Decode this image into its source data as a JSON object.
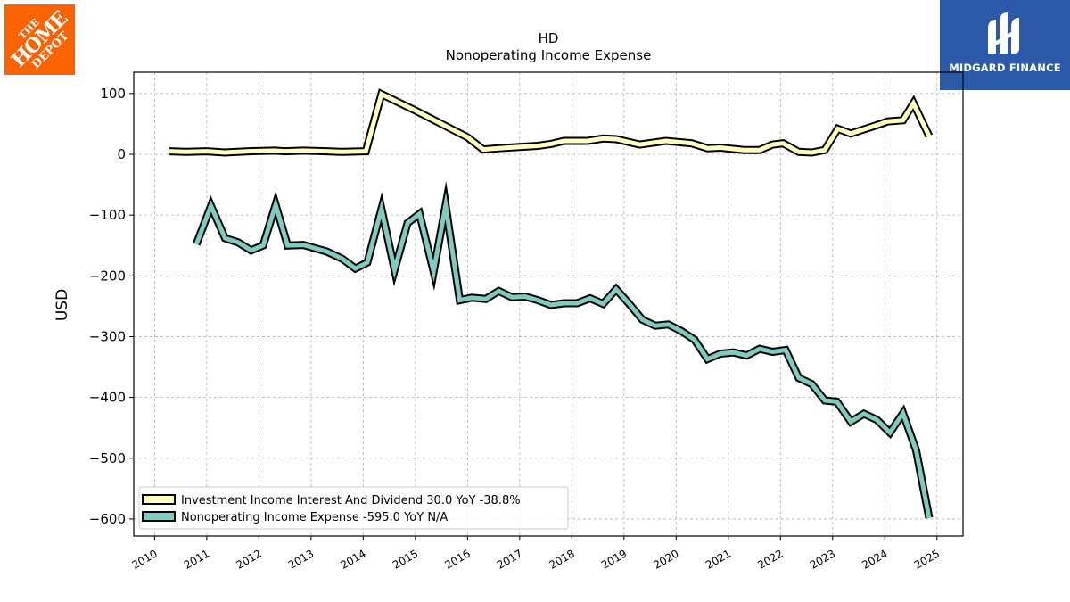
{
  "branding": {
    "left_logo": {
      "line1": "THE",
      "line2": "HOME",
      "line3": "DEPOT",
      "color": "#f96302"
    },
    "right_logo": {
      "name": "MIDGARD FINANCE",
      "icon": "midgard-m-icon",
      "color": "#2c5aa8"
    }
  },
  "chart_data": {
    "type": "line",
    "title": "HD",
    "subtitle": "Nonoperating Income Expense",
    "xlabel": "",
    "ylabel": "USD",
    "xlim": [
      2009.6,
      2025.5
    ],
    "ylim": [
      -628,
      135
    ],
    "x_ticks": [
      "2010",
      "2011",
      "2012",
      "2013",
      "2014",
      "2015",
      "2016",
      "2017",
      "2018",
      "2019",
      "2020",
      "2021",
      "2022",
      "2023",
      "2024",
      "2025"
    ],
    "y_ticks": [
      100,
      0,
      -100,
      -200,
      -300,
      -400,
      -500,
      -600
    ],
    "y_tick_labels": [
      "100",
      "0",
      "−100",
      "−200",
      "−300",
      "−400",
      "−500",
      "−600"
    ],
    "grid": true,
    "legend_position": "lower-left",
    "series": [
      {
        "name": "Investment Income Interest And Dividend",
        "legend_label": "Investment Income Interest And Dividend  30.0 YoY -38.8%",
        "color": "#ffffbf",
        "points": [
          [
            2010.28,
            5
          ],
          [
            2010.6,
            4
          ],
          [
            2011.0,
            5
          ],
          [
            2011.35,
            3
          ],
          [
            2011.8,
            5
          ],
          [
            2012.3,
            6
          ],
          [
            2012.5,
            5
          ],
          [
            2012.85,
            6
          ],
          [
            2013.3,
            5
          ],
          [
            2013.6,
            4
          ],
          [
            2014.05,
            5
          ],
          [
            2014.35,
            99
          ],
          [
            2015.0,
            72
          ],
          [
            2015.5,
            50
          ],
          [
            2016.0,
            28
          ],
          [
            2016.3,
            8
          ],
          [
            2016.6,
            10
          ],
          [
            2017.0,
            12
          ],
          [
            2017.35,
            14
          ],
          [
            2017.6,
            17
          ],
          [
            2017.85,
            22
          ],
          [
            2018.3,
            22
          ],
          [
            2018.6,
            26
          ],
          [
            2018.85,
            25
          ],
          [
            2019.3,
            16
          ],
          [
            2019.8,
            22
          ],
          [
            2020.3,
            18
          ],
          [
            2020.6,
            10
          ],
          [
            2020.85,
            11
          ],
          [
            2021.3,
            7
          ],
          [
            2021.6,
            7
          ],
          [
            2021.85,
            16
          ],
          [
            2022.05,
            18
          ],
          [
            2022.35,
            4
          ],
          [
            2022.6,
            3
          ],
          [
            2022.85,
            7
          ],
          [
            2023.1,
            42
          ],
          [
            2023.35,
            34
          ],
          [
            2023.85,
            48
          ],
          [
            2024.05,
            54
          ],
          [
            2024.35,
            56
          ],
          [
            2024.55,
            84
          ],
          [
            2024.85,
            30
          ]
        ]
      },
      {
        "name": "Nonoperating Income Expense",
        "legend_label": "Nonoperating Income Expense  -595.0 YoY N/A",
        "color": "#80cbc0",
        "points": [
          [
            2010.8,
            -148
          ],
          [
            2011.08,
            -85
          ],
          [
            2011.35,
            -138
          ],
          [
            2011.6,
            -145
          ],
          [
            2011.85,
            -158
          ],
          [
            2012.08,
            -150
          ],
          [
            2012.32,
            -83
          ],
          [
            2012.55,
            -150
          ],
          [
            2012.85,
            -149
          ],
          [
            2013.3,
            -160
          ],
          [
            2013.6,
            -172
          ],
          [
            2013.85,
            -188
          ],
          [
            2014.08,
            -178
          ],
          [
            2014.35,
            -90
          ],
          [
            2014.6,
            -190
          ],
          [
            2014.85,
            -113
          ],
          [
            2015.08,
            -98
          ],
          [
            2015.35,
            -193
          ],
          [
            2015.58,
            -84
          ],
          [
            2015.85,
            -240
          ],
          [
            2016.08,
            -236
          ],
          [
            2016.35,
            -238
          ],
          [
            2016.6,
            -225
          ],
          [
            2016.85,
            -235
          ],
          [
            2017.1,
            -234
          ],
          [
            2017.35,
            -240
          ],
          [
            2017.6,
            -248
          ],
          [
            2017.85,
            -245
          ],
          [
            2018.1,
            -245
          ],
          [
            2018.35,
            -237
          ],
          [
            2018.6,
            -246
          ],
          [
            2018.85,
            -222
          ],
          [
            2019.1,
            -246
          ],
          [
            2019.35,
            -272
          ],
          [
            2019.6,
            -282
          ],
          [
            2019.85,
            -280
          ],
          [
            2020.1,
            -291
          ],
          [
            2020.35,
            -305
          ],
          [
            2020.6,
            -337
          ],
          [
            2020.85,
            -328
          ],
          [
            2021.1,
            -326
          ],
          [
            2021.35,
            -331
          ],
          [
            2021.6,
            -320
          ],
          [
            2021.85,
            -325
          ],
          [
            2022.1,
            -322
          ],
          [
            2022.35,
            -368
          ],
          [
            2022.6,
            -378
          ],
          [
            2022.85,
            -405
          ],
          [
            2023.08,
            -407
          ],
          [
            2023.35,
            -440
          ],
          [
            2023.6,
            -427
          ],
          [
            2023.85,
            -437
          ],
          [
            2024.1,
            -458
          ],
          [
            2024.35,
            -426
          ],
          [
            2024.6,
            -487
          ],
          [
            2024.85,
            -598
          ]
        ]
      }
    ]
  }
}
